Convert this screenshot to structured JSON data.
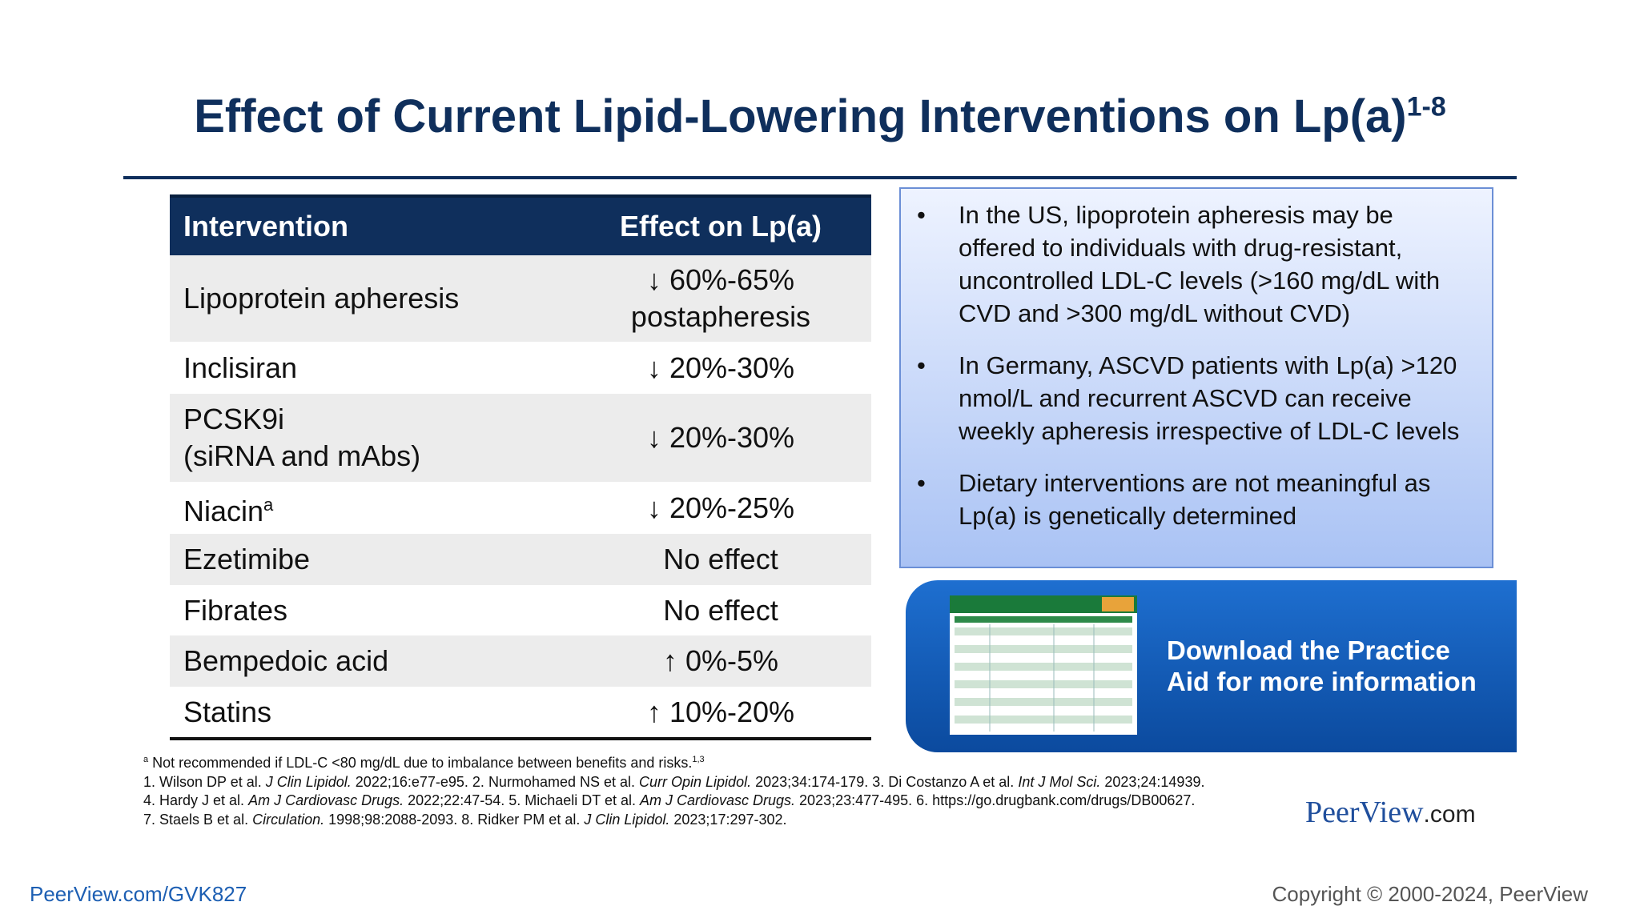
{
  "header": {
    "title": "Effect of Current Lipid-Lowering Interventions on Lp(a)",
    "title_sup": "1-8"
  },
  "table": {
    "columns": [
      "Intervention",
      "Effect on Lp(a)"
    ],
    "rows": [
      {
        "intervention": [
          "Lipoprotein apheresis"
        ],
        "effect": [
          "↓ 60%-65%",
          "postapheresis"
        ]
      },
      {
        "intervention": [
          "Inclisiran"
        ],
        "effect": [
          "↓ 20%-30%"
        ]
      },
      {
        "intervention": [
          "PCSK9i",
          "(siRNA and mAbs)"
        ],
        "effect": [
          "↓ 20%-30%"
        ]
      },
      {
        "intervention": [
          "Niacin"
        ],
        "sup": "a",
        "effect": [
          "↓ 20%-25%"
        ]
      },
      {
        "intervention": [
          "Ezetimibe"
        ],
        "effect": [
          "No effect"
        ]
      },
      {
        "intervention": [
          "Fibrates"
        ],
        "effect": [
          "No effect"
        ]
      },
      {
        "intervention": [
          "Bempedoic acid"
        ],
        "effect": [
          "↑ 0%-5%"
        ]
      },
      {
        "intervention": [
          "Statins"
        ],
        "effect": [
          "↑ 10%-20%"
        ]
      }
    ]
  },
  "bullets": [
    "In the US, lipoprotein apheresis may be offered to individuals with drug-resistant, uncontrolled LDL-C levels (>160 mg/dL with CVD and >300 mg/dL without CVD)",
    "In Germany, ASCVD patients with Lp(a) >120 nmol/L and recurrent ASCVD can receive weekly apheresis irrespective of LDL-C levels",
    "Dietary interventions are not meaningful as Lp(a) is genetically determined"
  ],
  "banner": {
    "lines": [
      "Download the Practice",
      "Aid for more information"
    ]
  },
  "footnote": {
    "mark": "a",
    "text": "Not recommended if LDL-C <80 mg/dL due to imbalance between benefits and risks.",
    "sup": "1,3"
  },
  "references": [
    [
      "1. Wilson DP et al. ",
      "J Clin Lipidol.",
      " 2022;16:e77-e95. 2. Nurmohamed NS et al. ",
      "Curr Opin Lipidol.",
      " 2023;34:174-179. 3. Di Costanzo A et al. ",
      "Int J Mol Sci.",
      " 2023;24:14939."
    ],
    [
      "4.  Hardy J et al. ",
      "Am J Cardiovasc Drugs.",
      " 2022;22:47-54. 5. Michaeli DT et al. ",
      "Am J Cardiovasc Drugs.",
      " 2023;23:477-495. 6. https://go.drugbank.com/drugs/DB00627."
    ],
    [
      "7. Staels B et al. ",
      "Circulation.",
      " 1998;98:2088-2093. 8. Ridker PM et al. ",
      "J Clin Lipidol.",
      " 2023;17:297-302."
    ]
  ],
  "logo": {
    "main": "PeerView",
    "suffix": ".com"
  },
  "footer": {
    "link": "PeerView.com/GVK827",
    "copyright": "Copyright © 2000-2024, PeerView"
  }
}
